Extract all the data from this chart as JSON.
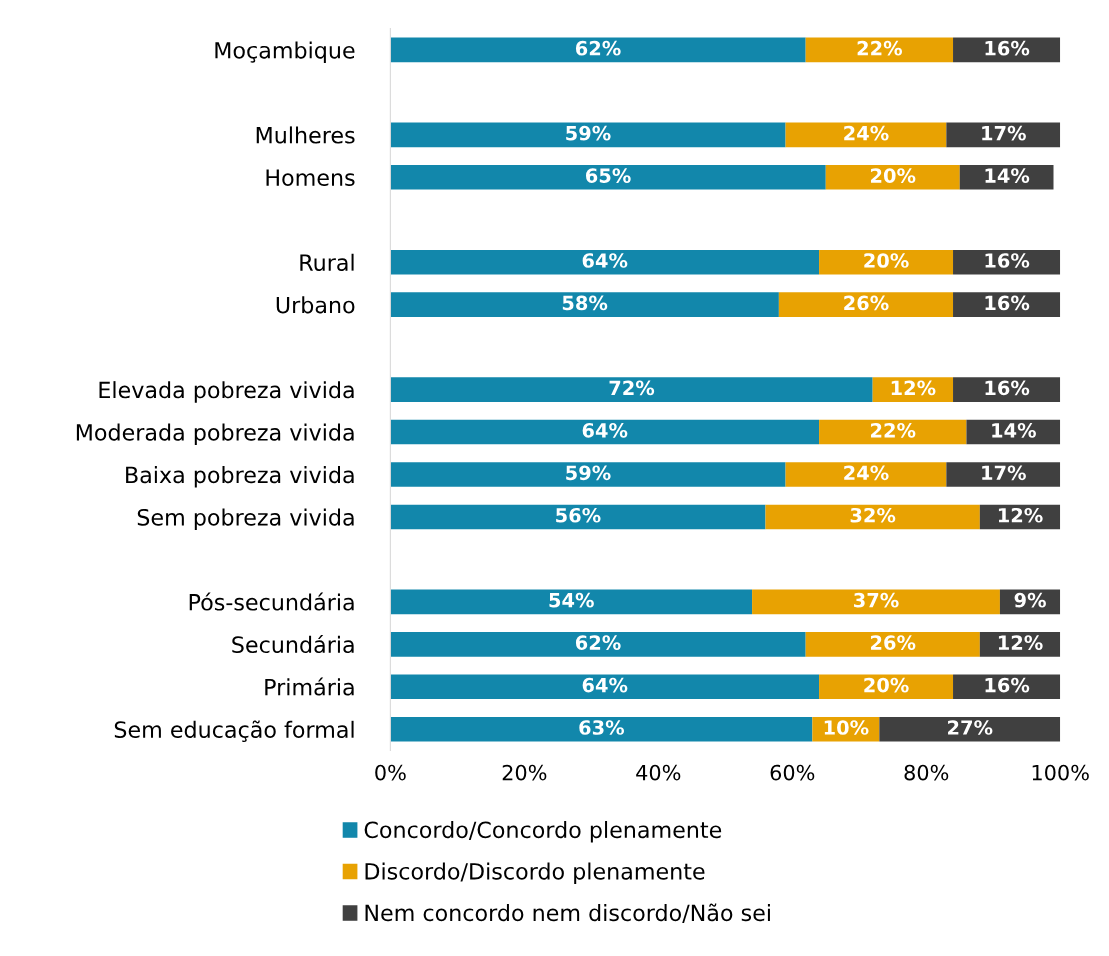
{
  "chart_data": {
    "type": "bar",
    "orientation": "horizontal",
    "stacked": true,
    "legend": "bottom",
    "grid": false,
    "categories": [
      "Moçambique",
      null,
      "Mulheres",
      "Homens",
      null,
      "Rural",
      "Urbano",
      null,
      "Elevada pobreza vivida",
      "Moderada pobreza vivida",
      "Baixa pobreza vivida",
      "Sem pobreza vivida",
      null,
      "Pós-secundária",
      "Secundária",
      "Primária",
      "Sem educação formal"
    ],
    "xlim": [
      0,
      100
    ],
    "xticks": [
      {
        "value": 0,
        "label": "0%"
      },
      {
        "value": 20,
        "label": "20%"
      },
      {
        "value": 40,
        "label": "40%"
      },
      {
        "value": 60,
        "label": "60%"
      },
      {
        "value": 80,
        "label": "80%"
      },
      {
        "value": 100,
        "label": "100%"
      }
    ],
    "series": [
      {
        "name": "Concordo/Concordo plenamente",
        "color": "#1287ab",
        "values": [
          62,
          null,
          59,
          65,
          null,
          64,
          58,
          null,
          72,
          64,
          59,
          56,
          null,
          54,
          62,
          64,
          63
        ],
        "value_labels": [
          "62%",
          null,
          "59%",
          "65%",
          null,
          "64%",
          "58%",
          null,
          "72%",
          "64%",
          "59%",
          "56%",
          null,
          "54%",
          "62%",
          "64%",
          "63%"
        ]
      },
      {
        "name": "Discordo/Discordo plenamente",
        "color": "#e8a202",
        "values": [
          22,
          null,
          24,
          20,
          null,
          20,
          26,
          null,
          12,
          22,
          24,
          32,
          null,
          37,
          26,
          20,
          10
        ],
        "value_labels": [
          "22%",
          null,
          "24%",
          "20%",
          null,
          "20%",
          "26%",
          null,
          "12%",
          "22%",
          "24%",
          "32%",
          null,
          "37%",
          "26%",
          "20%",
          "10%"
        ]
      },
      {
        "name": "Nem concordo nem discordo/Não sei",
        "color": "#404040",
        "values": [
          16,
          null,
          17,
          14,
          null,
          16,
          16,
          null,
          16,
          14,
          17,
          12,
          null,
          9,
          12,
          16,
          27
        ],
        "value_labels": [
          "16%",
          null,
          "17%",
          "14%",
          null,
          "16%",
          "16%",
          null,
          "16%",
          "14%",
          "17%",
          "12%",
          null,
          "9%",
          "12%",
          "16%",
          "27%"
        ]
      }
    ]
  }
}
